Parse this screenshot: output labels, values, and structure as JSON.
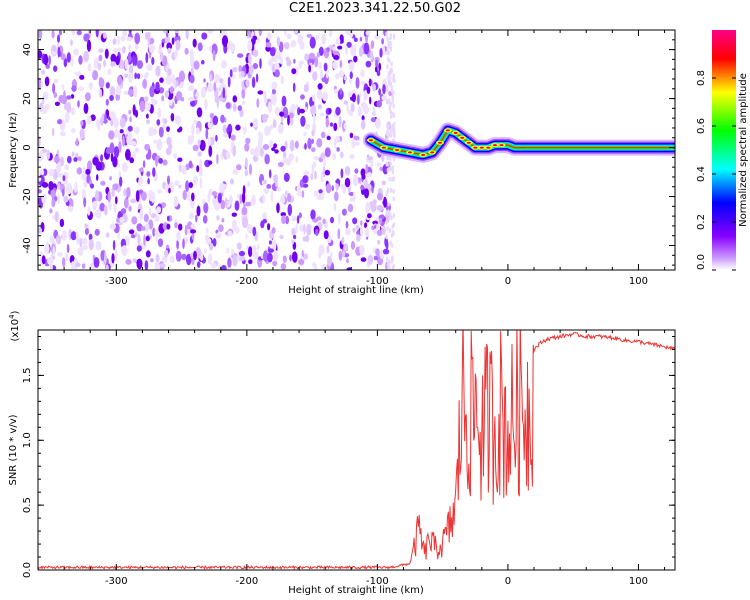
{
  "title": "C2E1.2023.341.22.50.G02",
  "chart_data": [
    {
      "type": "heatmap",
      "xlabel": "Height of straight line (km)",
      "ylabel": "Frequency (Hz)",
      "xlim": [
        -360,
        128
      ],
      "ylim": [
        -50,
        48
      ],
      "xticks": [
        -300,
        -200,
        -100,
        0,
        100
      ],
      "yticks": [
        -40,
        -20,
        0,
        20,
        40
      ],
      "xtick_labels": [
        "-300",
        "-200",
        "-100",
        "0",
        "100"
      ],
      "ytick_labels": [
        "-40",
        "-20",
        "0",
        "20",
        "40"
      ],
      "noise_region_x": [
        -360,
        -90
      ],
      "signal_trace": {
        "x": [
          -105,
          -95,
          -85,
          -75,
          -65,
          -58,
          -52,
          -46,
          -40,
          -35,
          -30,
          -25,
          -20,
          -15,
          -10,
          -5,
          0,
          5,
          10,
          20,
          40,
          60,
          80,
          100,
          128
        ],
        "y": [
          3,
          0,
          -1,
          -2,
          -3,
          -2,
          2,
          7,
          6,
          4,
          2,
          0,
          0,
          0,
          1,
          1,
          1,
          0,
          0,
          0,
          0,
          0,
          0,
          0,
          0
        ]
      },
      "colorbar": {
        "label": "Normalized spectral amplitude",
        "range": [
          0,
          1
        ],
        "ticks": [
          0.0,
          0.2,
          0.4,
          0.6,
          0.8
        ],
        "tick_labels": [
          "0.0",
          "0.2",
          "0.4",
          "0.6",
          "0.8"
        ],
        "colors": [
          "#ffffff",
          "#8800ff",
          "#0000ff",
          "#00ffff",
          "#00ff00",
          "#ffff00",
          "#ff0000",
          "#ff0088"
        ]
      }
    },
    {
      "type": "line",
      "xlabel": "Height of straight line (km)",
      "ylabel": "SNR (10 * v/v)",
      "multiplier": "(x10",
      "multiplier_exp": "4",
      "multiplier_close": ")",
      "xlim": [
        -360,
        128
      ],
      "ylim": [
        0,
        1.85
      ],
      "xticks": [
        -300,
        -200,
        -100,
        0,
        100
      ],
      "yticks": [
        0.0,
        0.5,
        1.0,
        1.5
      ],
      "xtick_labels": [
        "-300",
        "-200",
        "-100",
        "0",
        "100"
      ],
      "ytick_labels": [
        "0.0",
        "0.5",
        "1.0",
        "1.5"
      ],
      "color": "#ee3333",
      "series": [
        {
          "x": [
            -360,
            -300,
            -200,
            -100,
            -90,
            -75,
            -70,
            -68,
            -64,
            -60,
            -55,
            -50,
            -45,
            -40,
            -38,
            -35,
            -30,
            -25,
            -20,
            -15,
            -10,
            -5,
            0,
            5,
            10,
            15,
            20,
            25,
            30,
            40,
            50,
            60,
            70,
            80,
            90,
            100,
            110,
            120,
            128
          ],
          "y": [
            0.02,
            0.02,
            0.02,
            0.02,
            0.02,
            0.05,
            0.3,
            0.4,
            0.15,
            0.3,
            0.2,
            0.25,
            0.4,
            0.6,
            1.0,
            1.7,
            1.4,
            1.6,
            1.3,
            1.5,
            1.4,
            1.55,
            1.3,
            1.5,
            1.6,
            1.55,
            1.7,
            1.75,
            1.78,
            1.8,
            1.82,
            1.8,
            1.8,
            1.79,
            1.77,
            1.76,
            1.74,
            1.72,
            1.7
          ]
        }
      ]
    }
  ]
}
